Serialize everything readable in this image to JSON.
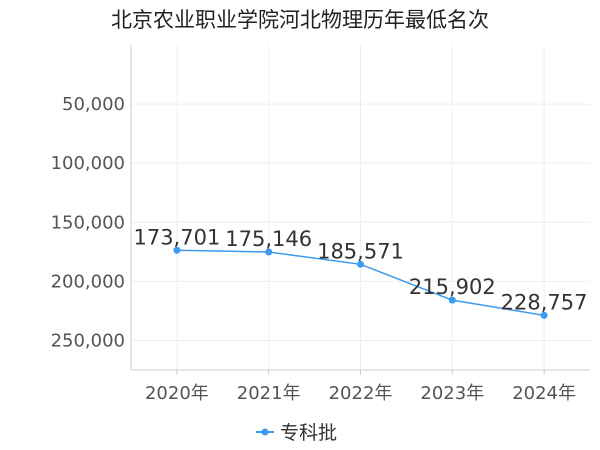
{
  "chart_data": {
    "type": "line",
    "title": "北京农业职业学院河北物理历年最低名次",
    "x": [
      "2020年",
      "2021年",
      "2022年",
      "2023年",
      "2024年"
    ],
    "series": [
      {
        "name": "专科批",
        "values": [
          173701,
          175146,
          185571,
          215902,
          228757
        ],
        "labels": [
          "173,701",
          "175,146",
          "185,571",
          "215,902",
          "228,757"
        ],
        "color": "#3a9bf0"
      }
    ],
    "y_ticks": [
      50000,
      100000,
      150000,
      200000,
      250000
    ],
    "y_tick_labels": [
      "50,000",
      "100,000",
      "150,000",
      "200,000",
      "250,000"
    ],
    "ylim": [
      0,
      275000
    ],
    "y_inverted": true,
    "grid": true,
    "legend_position": "bottom-center",
    "grid_color": "#eeeeee",
    "axis_color": "#cccccc"
  }
}
